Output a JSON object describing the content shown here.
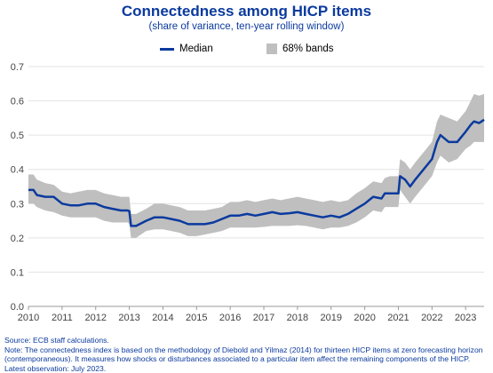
{
  "chart_data": {
    "type": "area",
    "title": "Connectedness among HICP items",
    "subtitle": "(share of variance, ten-year rolling window)",
    "legend": {
      "position": "top-center",
      "entries": [
        {
          "label": "Median",
          "style": "line",
          "color": "#0b3a9e"
        },
        {
          "label": "68% bands",
          "style": "area",
          "color": "#bfbfbf"
        }
      ]
    },
    "xlim": [
      2010,
      2023.55
    ],
    "ylim": [
      0,
      0.7
    ],
    "x_ticks": [
      "2010",
      "2011",
      "2012",
      "2013",
      "2014",
      "2015",
      "2016",
      "2017",
      "2018",
      "2019",
      "2020",
      "2021",
      "2022",
      "2023"
    ],
    "y_ticks": [
      "0.0",
      "0.1",
      "0.2",
      "0.3",
      "0.4",
      "0.5",
      "0.6",
      "0.7"
    ],
    "grid": "horizontal",
    "series": [
      {
        "name": "Median",
        "type": "line",
        "x": [
          2010.0,
          2010.15,
          2010.25,
          2010.5,
          2010.75,
          2011.0,
          2011.25,
          2011.5,
          2011.75,
          2012.0,
          2012.25,
          2012.5,
          2012.75,
          2012.95,
          2013.0,
          2013.05,
          2013.2,
          2013.5,
          2013.75,
          2014.0,
          2014.25,
          2014.5,
          2014.75,
          2015.0,
          2015.25,
          2015.5,
          2015.75,
          2016.0,
          2016.25,
          2016.5,
          2016.75,
          2017.0,
          2017.25,
          2017.5,
          2017.75,
          2018.0,
          2018.25,
          2018.5,
          2018.75,
          2019.0,
          2019.25,
          2019.5,
          2019.75,
          2020.0,
          2020.25,
          2020.5,
          2020.6,
          2020.75,
          2021.0,
          2021.05,
          2021.2,
          2021.35,
          2021.5,
          2021.75,
          2022.0,
          2022.15,
          2022.25,
          2022.5,
          2022.75,
          2023.0,
          2023.15,
          2023.25,
          2023.4,
          2023.55
        ],
        "y": [
          0.34,
          0.34,
          0.325,
          0.32,
          0.32,
          0.3,
          0.295,
          0.295,
          0.3,
          0.3,
          0.29,
          0.285,
          0.28,
          0.28,
          0.278,
          0.235,
          0.235,
          0.25,
          0.26,
          0.26,
          0.255,
          0.25,
          0.24,
          0.24,
          0.24,
          0.245,
          0.255,
          0.265,
          0.265,
          0.27,
          0.265,
          0.27,
          0.275,
          0.27,
          0.272,
          0.275,
          0.27,
          0.265,
          0.26,
          0.265,
          0.26,
          0.27,
          0.285,
          0.3,
          0.32,
          0.315,
          0.33,
          0.33,
          0.33,
          0.38,
          0.37,
          0.35,
          0.37,
          0.4,
          0.43,
          0.48,
          0.5,
          0.48,
          0.48,
          0.51,
          0.53,
          0.54,
          0.535,
          0.545
        ]
      },
      {
        "name": "68% bands",
        "type": "band",
        "x": [
          2010.0,
          2010.15,
          2010.25,
          2010.5,
          2010.75,
          2011.0,
          2011.25,
          2011.5,
          2011.75,
          2012.0,
          2012.25,
          2012.5,
          2012.75,
          2012.95,
          2013.0,
          2013.05,
          2013.2,
          2013.5,
          2013.75,
          2014.0,
          2014.25,
          2014.5,
          2014.75,
          2015.0,
          2015.25,
          2015.5,
          2015.75,
          2016.0,
          2016.25,
          2016.5,
          2016.75,
          2017.0,
          2017.25,
          2017.5,
          2017.75,
          2018.0,
          2018.25,
          2018.5,
          2018.75,
          2019.0,
          2019.25,
          2019.5,
          2019.75,
          2020.0,
          2020.25,
          2020.5,
          2020.6,
          2020.75,
          2021.0,
          2021.05,
          2021.2,
          2021.35,
          2021.5,
          2021.75,
          2022.0,
          2022.15,
          2022.25,
          2022.5,
          2022.75,
          2023.0,
          2023.15,
          2023.25,
          2023.4,
          2023.55
        ],
        "lower": [
          0.3,
          0.3,
          0.29,
          0.28,
          0.275,
          0.265,
          0.26,
          0.26,
          0.26,
          0.26,
          0.25,
          0.245,
          0.245,
          0.245,
          0.24,
          0.2,
          0.2,
          0.22,
          0.225,
          0.225,
          0.22,
          0.215,
          0.205,
          0.205,
          0.21,
          0.215,
          0.22,
          0.23,
          0.23,
          0.23,
          0.23,
          0.232,
          0.235,
          0.235,
          0.235,
          0.237,
          0.235,
          0.23,
          0.225,
          0.23,
          0.23,
          0.235,
          0.245,
          0.26,
          0.28,
          0.275,
          0.29,
          0.29,
          0.29,
          0.34,
          0.32,
          0.3,
          0.32,
          0.35,
          0.38,
          0.42,
          0.44,
          0.42,
          0.43,
          0.46,
          0.47,
          0.48,
          0.48,
          0.48
        ],
        "upper": [
          0.385,
          0.385,
          0.37,
          0.36,
          0.355,
          0.335,
          0.33,
          0.335,
          0.34,
          0.34,
          0.33,
          0.325,
          0.32,
          0.32,
          0.32,
          0.27,
          0.27,
          0.285,
          0.3,
          0.3,
          0.295,
          0.29,
          0.28,
          0.28,
          0.28,
          0.285,
          0.29,
          0.305,
          0.305,
          0.31,
          0.305,
          0.31,
          0.315,
          0.31,
          0.315,
          0.32,
          0.315,
          0.31,
          0.305,
          0.31,
          0.305,
          0.31,
          0.33,
          0.345,
          0.365,
          0.36,
          0.375,
          0.38,
          0.38,
          0.43,
          0.42,
          0.4,
          0.42,
          0.45,
          0.48,
          0.54,
          0.56,
          0.55,
          0.54,
          0.57,
          0.6,
          0.62,
          0.615,
          0.62
        ]
      }
    ]
  },
  "notes": {
    "source": "Source: ECB staff calculations.",
    "note_line1": "Note: The connectedness index is based on the methodology of Diebold and Yilmaz (2014) for thirteen HICP items at zero forecasting horizon",
    "note_line2": "(contemporaneous). It measures how shocks or disturbances associated to a particular item affect the remaining components of the HICP.",
    "latest": "Latest observation: July 2023."
  }
}
